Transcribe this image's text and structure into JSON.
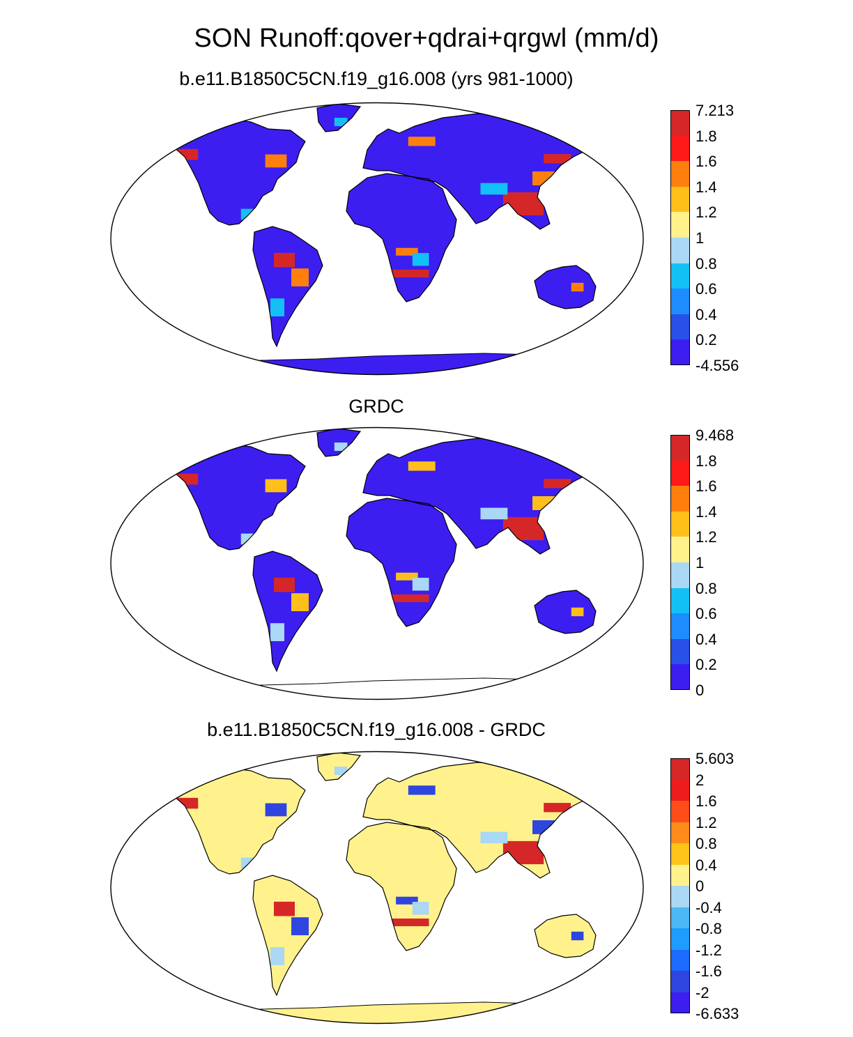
{
  "title": "SON Runoff:qover+qdrai+qrgwl (mm/d)",
  "panels": [
    {
      "id": "model",
      "title": "b.e11.B1850C5CN.f19_g16.008 (yrs 981-1000)",
      "colorbar": {
        "labels": [
          "7.213",
          "1.8",
          "1.6",
          "1.4",
          "1.2",
          "1",
          "0.8",
          "0.6",
          "0.4",
          "0.2",
          "-4.556"
        ],
        "colors": [
          "#d62728",
          "#ff1a1a",
          "#ff7f0e",
          "#ffbf1a",
          "#fff28c",
          "#a9d7f4",
          "#13c0f6",
          "#1e8cff",
          "#2851e8",
          "#3c1ef0"
        ]
      },
      "antarctica": true
    },
    {
      "id": "obs",
      "title": "GRDC",
      "colorbar": {
        "labels": [
          "9.468",
          "1.8",
          "1.6",
          "1.4",
          "1.2",
          "1",
          "0.8",
          "0.6",
          "0.4",
          "0.2",
          "0"
        ],
        "colors": [
          "#d62728",
          "#ff1a1a",
          "#ff7f0e",
          "#ffbf1a",
          "#fff28c",
          "#a9d7f4",
          "#13c0f6",
          "#1e8cff",
          "#2851e8",
          "#3c1ef0"
        ]
      },
      "antarctica": false
    },
    {
      "id": "diff",
      "title": "b.e11.B1850C5CN.f19_g16.008 - GRDC",
      "colorbar": {
        "labels": [
          "5.603",
          "2",
          "1.6",
          "1.2",
          "0.8",
          "0.4",
          "0",
          "-0.4",
          "-0.8",
          "-1.2",
          "-1.6",
          "-2",
          "-6.633"
        ],
        "colors": [
          "#d62728",
          "#ee1c1c",
          "#ff4d1a",
          "#ff8c1a",
          "#ffc41a",
          "#fff28c",
          "#a9d7f4",
          "#4cb8f4",
          "#1e9cff",
          "#1e6bff",
          "#2f45e0",
          "#3c1ef0"
        ]
      },
      "antarctica": true
    }
  ]
}
